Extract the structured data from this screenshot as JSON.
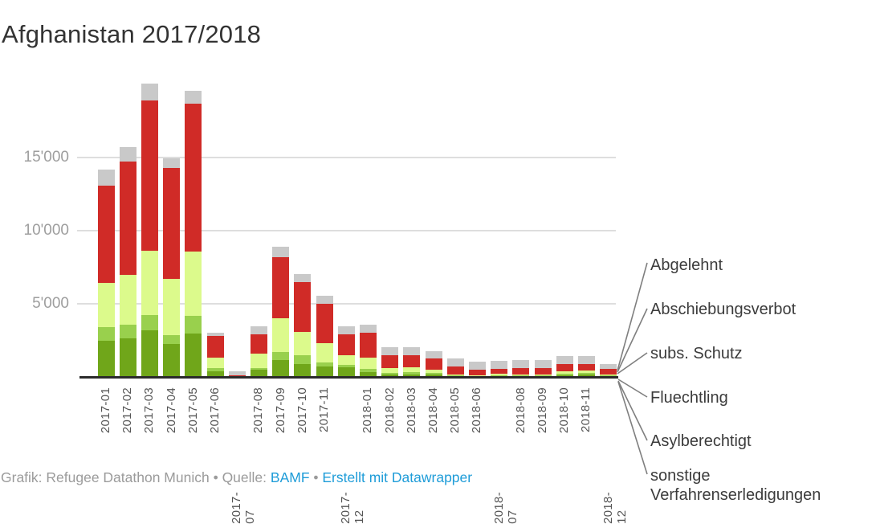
{
  "title": "Afghanistan 2017/2018",
  "footer": {
    "prefix": "Grafik: Refugee Datathon Munich • Quelle: ",
    "source_link": "BAMF",
    "separator": " • ",
    "credit_link": "Erstellt mit Datawrapper"
  },
  "colors": {
    "abgelehnt": "#d02b27",
    "abschiebungsverbot": "#dcfa8c",
    "subs_schutz": "#99d04d",
    "fluechtling": "#70a61a",
    "asylberechtigt": "#3e7a05",
    "sonstige": "#c9c9c9",
    "gridline": "#dedede",
    "axis": "#2b2b2b",
    "leader_line": "#7f7f7f",
    "link_blue": "#1e9cd8"
  },
  "chart_data": {
    "type": "bar",
    "stacked": true,
    "title": "Afghanistan 2017/2018",
    "xlabel": "",
    "ylabel": "",
    "ylim": [
      0,
      20300
    ],
    "grid": true,
    "legend_position": "right-leader-lines",
    "yticks": [
      {
        "label": "5'000",
        "value": 5000
      },
      {
        "label": "10'000",
        "value": 10000
      },
      {
        "label": "15'000",
        "value": 15000
      }
    ],
    "x": [
      "2017-01",
      "2017-02",
      "2017-03",
      "2017-04",
      "2017-05",
      "2017-06",
      "2017-07",
      "2017-08",
      "2017-09",
      "2017-10",
      "2017-11",
      "2017-12",
      "2018-01",
      "2018-02",
      "2018-03",
      "2018-04",
      "2018-05",
      "2018-06",
      "2018-07",
      "2018-08",
      "2018-09",
      "2018-10",
      "2018-11",
      "2018-12"
    ],
    "staggered_hidden_x_labels": [
      "2017-07",
      "2017-12",
      "2018-07",
      "2018-12"
    ],
    "series": [
      {
        "name": "Asylberechtigt",
        "color": "#3e7a05",
        "values": [
          10,
          10,
          10,
          10,
          10,
          5,
          0,
          5,
          10,
          10,
          5,
          5,
          5,
          5,
          5,
          5,
          0,
          0,
          0,
          0,
          0,
          0,
          0,
          0
        ]
      },
      {
        "name": "Fluechtling",
        "color": "#70a61a",
        "values": [
          2450,
          2610,
          3160,
          2230,
          2940,
          360,
          40,
          470,
          1130,
          850,
          690,
          630,
          350,
          140,
          140,
          140,
          60,
          40,
          60,
          60,
          60,
          120,
          150,
          60
        ]
      },
      {
        "name": "subs. Schutz",
        "color": "#99d04d",
        "values": [
          930,
          930,
          1040,
          600,
          1210,
          220,
          10,
          110,
          550,
          600,
          280,
          170,
          170,
          110,
          165,
          110,
          40,
          20,
          50,
          50,
          50,
          100,
          110,
          50
        ]
      },
      {
        "name": "Abschiebungsverbot",
        "color": "#dcfa8c",
        "values": [
          3020,
          3410,
          4400,
          3850,
          4400,
          710,
          20,
          1000,
          2310,
          1590,
          1320,
          660,
          770,
          330,
          330,
          220,
          60,
          40,
          110,
          80,
          80,
          170,
          165,
          80
        ]
      },
      {
        "name": "Abgelehnt",
        "color": "#d02b27",
        "values": [
          6680,
          7750,
          10280,
          7580,
          10110,
          1480,
          30,
          1300,
          4180,
          3410,
          2690,
          1430,
          1700,
          880,
          820,
          770,
          550,
          390,
          330,
          440,
          440,
          500,
          440,
          380
        ]
      },
      {
        "name": "sonstige Verfahrenserledigungen",
        "color": "#c9c9c9",
        "values": [
          1070,
          990,
          1150,
          660,
          880,
          270,
          260,
          600,
          710,
          550,
          550,
          550,
          550,
          550,
          600,
          500,
          550,
          550,
          550,
          500,
          500,
          550,
          550,
          330
        ]
      }
    ],
    "legend_display_order": [
      "Abgelehnt",
      "Abschiebungsverbot",
      "subs. Schutz",
      "Fluechtling",
      "Asylberechtigt",
      "sonstige Verfahrenserledigungen"
    ]
  }
}
